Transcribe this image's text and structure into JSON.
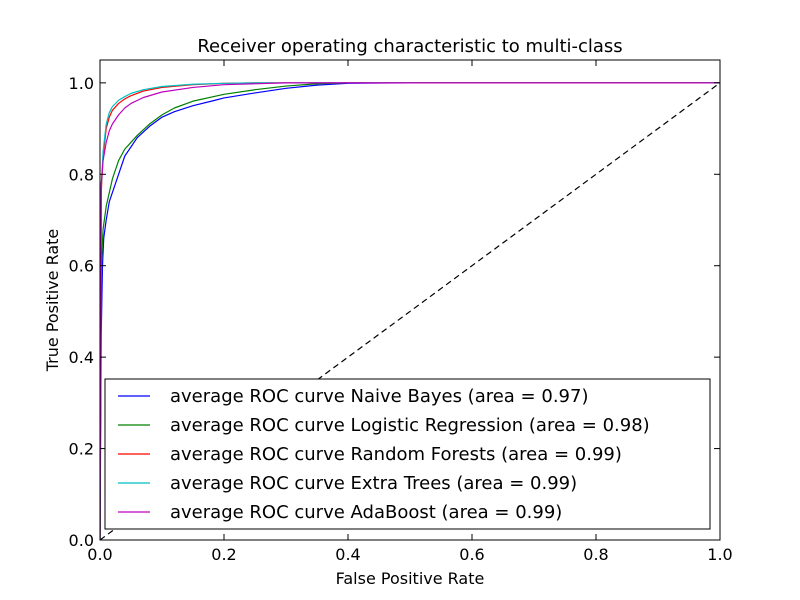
{
  "chart_data": {
    "type": "line",
    "title": "Receiver operating characteristic to multi-class",
    "xlabel": "False Positive Rate",
    "ylabel": "True Positive Rate",
    "xlim": [
      0.0,
      1.0
    ],
    "ylim": [
      0.0,
      1.05
    ],
    "xticks": [
      "0.0",
      "0.2",
      "0.4",
      "0.6",
      "0.8",
      "1.0"
    ],
    "yticks": [
      "0.0",
      "0.2",
      "0.4",
      "0.6",
      "0.8",
      "1.0"
    ],
    "grid": false,
    "legend_position": "lower right",
    "reference_line": {
      "x": [
        0,
        1
      ],
      "y": [
        0,
        1
      ],
      "style": "dashed",
      "color": "#000000"
    },
    "series": [
      {
        "name": "average ROC curve Naive Bayes (area = 0.97)",
        "color": "#0000ff",
        "x": [
          0.0,
          0.002,
          0.004,
          0.006,
          0.01,
          0.015,
          0.02,
          0.03,
          0.04,
          0.05,
          0.06,
          0.08,
          0.1,
          0.12,
          0.15,
          0.18,
          0.2,
          0.25,
          0.3,
          0.35,
          0.4,
          0.5,
          1.0
        ],
        "y": [
          0.0,
          0.45,
          0.6,
          0.66,
          0.7,
          0.74,
          0.76,
          0.8,
          0.84,
          0.86,
          0.88,
          0.905,
          0.925,
          0.937,
          0.95,
          0.96,
          0.967,
          0.978,
          0.988,
          0.995,
          0.999,
          1.0,
          1.0
        ]
      },
      {
        "name": "average ROC curve Logistic Regression (area = 0.98)",
        "color": "#008000",
        "x": [
          0.0,
          0.002,
          0.005,
          0.01,
          0.02,
          0.03,
          0.04,
          0.05,
          0.06,
          0.08,
          0.1,
          0.12,
          0.15,
          0.2,
          0.25,
          0.3,
          0.35,
          0.4,
          1.0
        ],
        "y": [
          0.0,
          0.6,
          0.68,
          0.73,
          0.79,
          0.83,
          0.855,
          0.87,
          0.885,
          0.91,
          0.93,
          0.945,
          0.96,
          0.975,
          0.985,
          0.993,
          0.998,
          1.0,
          1.0
        ]
      },
      {
        "name": "average ROC curve Random Forests (area = 0.99)",
        "color": "#ff0000",
        "x": [
          0.0,
          0.002,
          0.005,
          0.01,
          0.015,
          0.02,
          0.03,
          0.04,
          0.05,
          0.07,
          0.1,
          0.15,
          0.2,
          0.25,
          1.0
        ],
        "y": [
          0.0,
          0.76,
          0.84,
          0.9,
          0.925,
          0.94,
          0.955,
          0.965,
          0.972,
          0.982,
          0.99,
          0.996,
          0.999,
          1.0,
          1.0
        ]
      },
      {
        "name": "average ROC curve Extra Trees (area = 0.99)",
        "color": "#00bfbf",
        "x": [
          0.0,
          0.002,
          0.005,
          0.01,
          0.015,
          0.02,
          0.03,
          0.04,
          0.05,
          0.07,
          0.1,
          0.15,
          0.2,
          0.25,
          1.0
        ],
        "y": [
          0.0,
          0.77,
          0.85,
          0.91,
          0.935,
          0.948,
          0.962,
          0.97,
          0.977,
          0.985,
          0.992,
          0.997,
          0.999,
          1.0,
          1.0
        ]
      },
      {
        "name": "average ROC curve AdaBoost (area = 0.99)",
        "color": "#bf00bf",
        "x": [
          0.0,
          0.002,
          0.005,
          0.01,
          0.015,
          0.02,
          0.03,
          0.04,
          0.05,
          0.07,
          0.1,
          0.15,
          0.2,
          0.3,
          1.0
        ],
        "y": [
          0.0,
          0.78,
          0.83,
          0.87,
          0.895,
          0.91,
          0.93,
          0.945,
          0.955,
          0.968,
          0.98,
          0.99,
          0.996,
          1.0,
          1.0
        ]
      }
    ]
  }
}
